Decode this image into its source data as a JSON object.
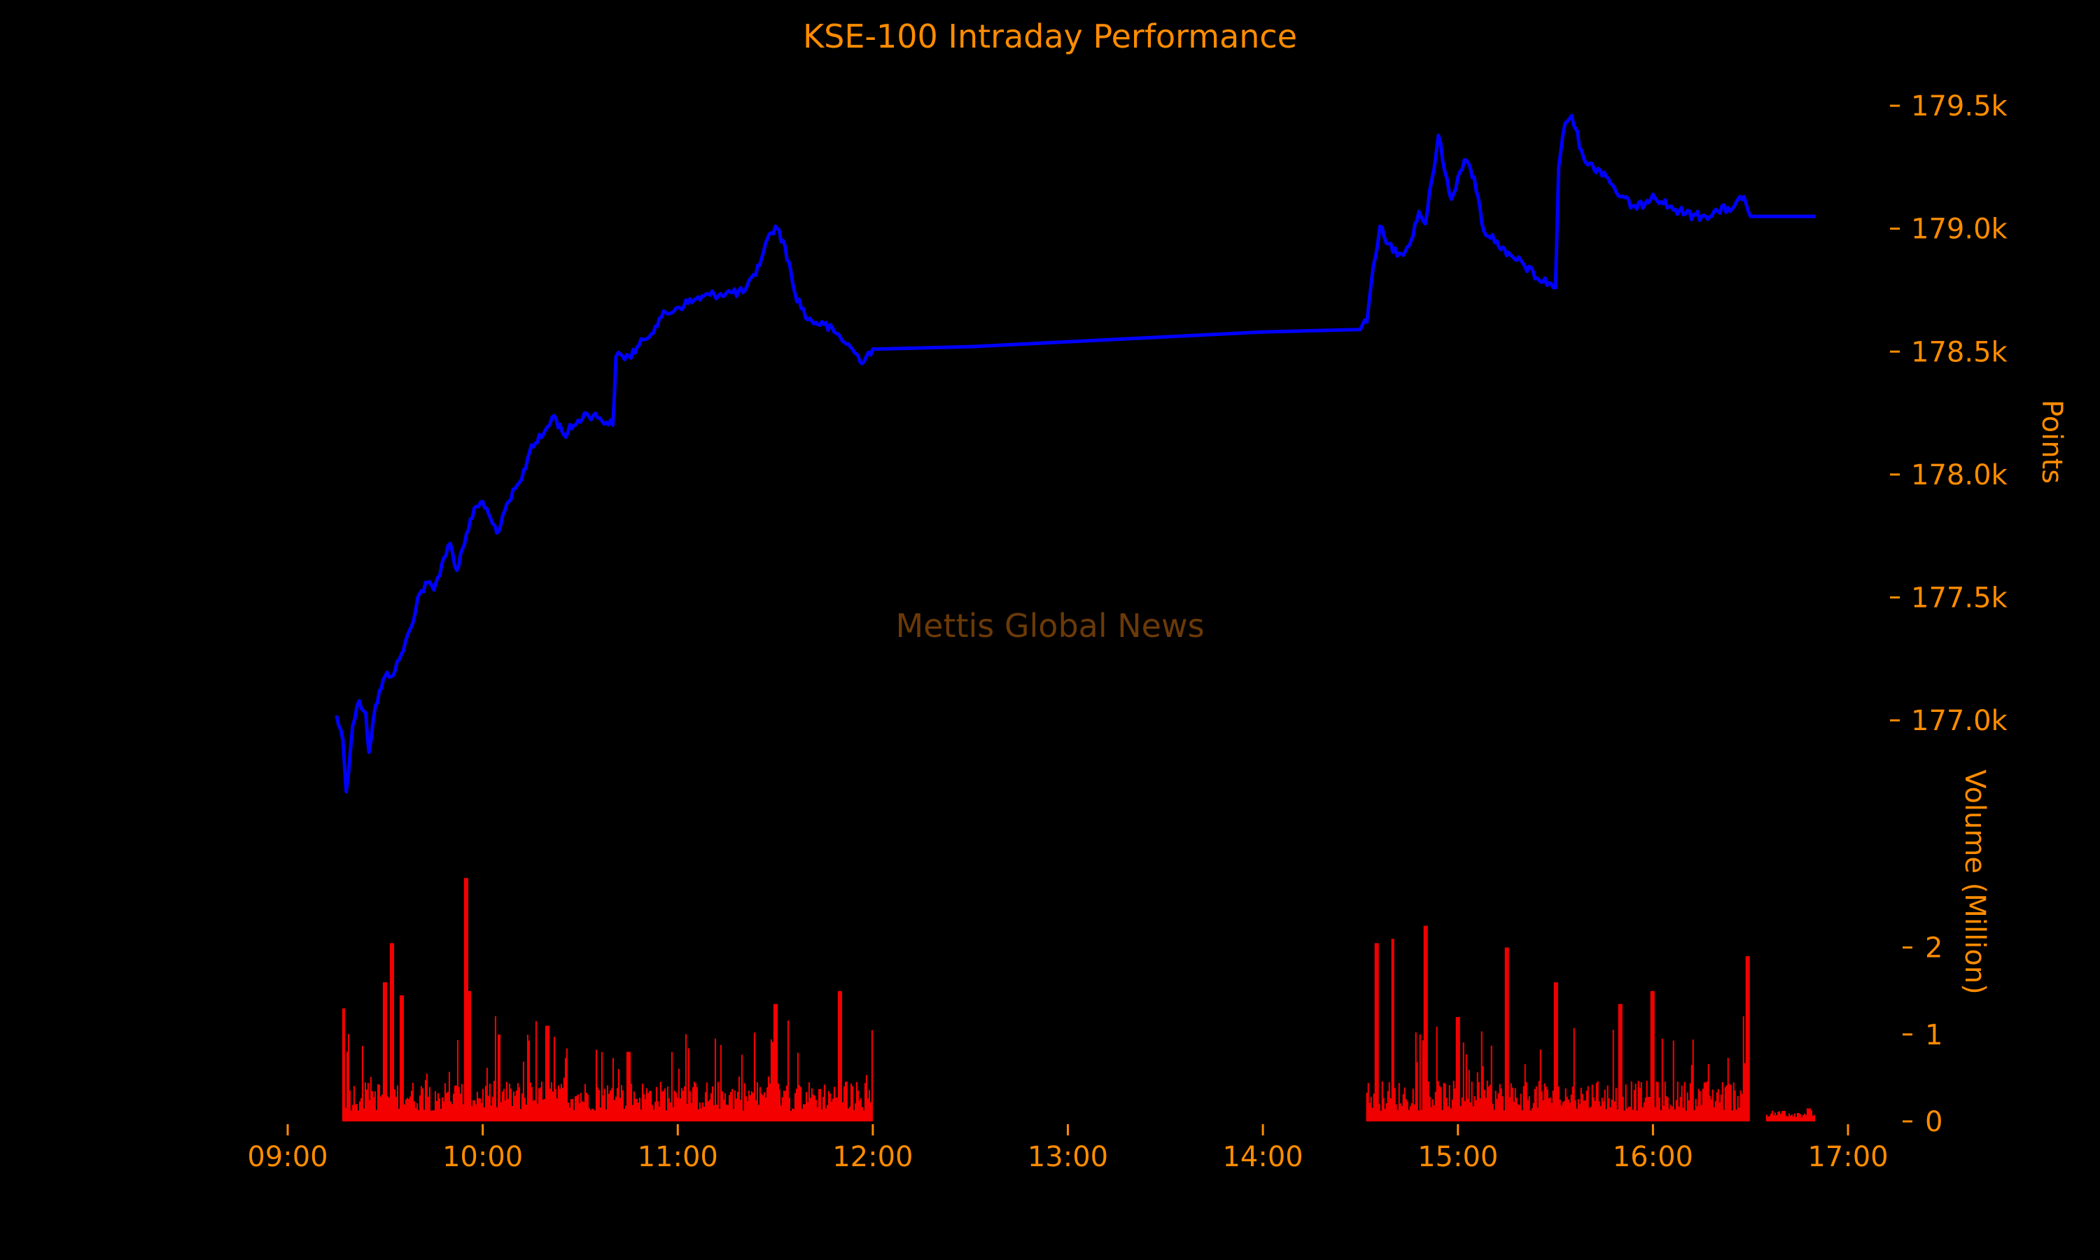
{
  "chart_data": {
    "type": "line",
    "title": "KSE-100 Intraday Performance",
    "watermark": "Mettis Global News",
    "x_ticks": [
      "09:00",
      "10:00",
      "11:00",
      "12:00",
      "13:00",
      "14:00",
      "15:00",
      "16:00",
      "17:00"
    ],
    "xlim": [
      "09:00",
      "17:00"
    ],
    "price_axis": {
      "label": "Points",
      "ticks": [
        177000,
        177500,
        178000,
        178500,
        179000,
        179500
      ],
      "tick_labels": [
        "177.0k",
        "177.5k",
        "178.0k",
        "178.5k",
        "179.0k",
        "179.5k"
      ],
      "ylim": [
        176650,
        179560
      ]
    },
    "volume_axis": {
      "label": "Volume (Million)",
      "ticks": [
        0,
        1,
        2
      ],
      "tick_labels": [
        "0",
        "1",
        "2"
      ],
      "ylim": [
        0,
        2.85
      ]
    },
    "series": [
      {
        "type": "line",
        "color": "#0000ff",
        "points": [
          [
            "09:15",
            177020
          ],
          [
            "09:17",
            176920
          ],
          [
            "09:18",
            176710
          ],
          [
            "09:20",
            176980
          ],
          [
            "09:22",
            177080
          ],
          [
            "09:24",
            177030
          ],
          [
            "09:25",
            176870
          ],
          [
            "09:27",
            177060
          ],
          [
            "09:30",
            177180
          ],
          [
            "09:33",
            177200
          ],
          [
            "09:35",
            177270
          ],
          [
            "09:38",
            177380
          ],
          [
            "09:40",
            177500
          ],
          [
            "09:43",
            177560
          ],
          [
            "09:45",
            177530
          ],
          [
            "09:48",
            177660
          ],
          [
            "09:50",
            177720
          ],
          [
            "09:52",
            177610
          ],
          [
            "09:55",
            177760
          ],
          [
            "09:58",
            177870
          ],
          [
            "10:00",
            177890
          ],
          [
            "10:03",
            177800
          ],
          [
            "10:05",
            177770
          ],
          [
            "10:08",
            177890
          ],
          [
            "10:12",
            177980
          ],
          [
            "10:15",
            178120
          ],
          [
            "10:18",
            178150
          ],
          [
            "10:22",
            178240
          ],
          [
            "10:25",
            178160
          ],
          [
            "10:28",
            178200
          ],
          [
            "10:32",
            178250
          ],
          [
            "10:36",
            178230
          ],
          [
            "10:40",
            178200
          ],
          [
            "10:41",
            178480
          ],
          [
            "10:45",
            178480
          ],
          [
            "10:50",
            178550
          ],
          [
            "10:55",
            178640
          ],
          [
            "11:00",
            178680
          ],
          [
            "11:05",
            178710
          ],
          [
            "11:10",
            178730
          ],
          [
            "11:15",
            178740
          ],
          [
            "11:20",
            178740
          ],
          [
            "11:24",
            178810
          ],
          [
            "11:27",
            178940
          ],
          [
            "11:30",
            179010
          ],
          [
            "11:33",
            178930
          ],
          [
            "11:36",
            178740
          ],
          [
            "11:40",
            178630
          ],
          [
            "11:45",
            178610
          ],
          [
            "11:50",
            178560
          ],
          [
            "11:55",
            178490
          ],
          [
            "11:56",
            178460
          ],
          [
            "12:00",
            178510
          ],
          [
            "12:30",
            178520
          ],
          [
            "13:00",
            178540
          ],
          [
            "13:30",
            178560
          ],
          [
            "14:00",
            178580
          ],
          [
            "14:30",
            178590
          ],
          [
            "14:32",
            178620
          ],
          [
            "14:34",
            178850
          ],
          [
            "14:36",
            179010
          ],
          [
            "14:38",
            178940
          ],
          [
            "14:42",
            178900
          ],
          [
            "14:45",
            178930
          ],
          [
            "14:48",
            179070
          ],
          [
            "14:50",
            179020
          ],
          [
            "14:52",
            179200
          ],
          [
            "14:54",
            179380
          ],
          [
            "14:56",
            179230
          ],
          [
            "14:58",
            179120
          ],
          [
            "15:00",
            179210
          ],
          [
            "15:02",
            179280
          ],
          [
            "15:05",
            179210
          ],
          [
            "15:08",
            178990
          ],
          [
            "15:12",
            178950
          ],
          [
            "15:15",
            178890
          ],
          [
            "15:20",
            178860
          ],
          [
            "15:25",
            178790
          ],
          [
            "15:28",
            178780
          ],
          [
            "15:30",
            178760
          ],
          [
            "15:31",
            179250
          ],
          [
            "15:33",
            179430
          ],
          [
            "15:35",
            179460
          ],
          [
            "15:38",
            179320
          ],
          [
            "15:40",
            179260
          ],
          [
            "15:45",
            179230
          ],
          [
            "15:50",
            179130
          ],
          [
            "15:55",
            179080
          ],
          [
            "16:00",
            179140
          ],
          [
            "16:05",
            179090
          ],
          [
            "16:10",
            179060
          ],
          [
            "16:15",
            179050
          ],
          [
            "16:20",
            179070
          ],
          [
            "16:25",
            179090
          ],
          [
            "16:28",
            179130
          ],
          [
            "16:30",
            179050
          ],
          [
            "16:50",
            179050
          ]
        ]
      },
      {
        "type": "bar",
        "color": "#ff0000",
        "unit": "Million",
        "sessions": [
          {
            "start": "09:17",
            "end": "12:00",
            "peaks": [
              [
                "09:17",
                1.3
              ],
              [
                "09:30",
                1.6
              ],
              [
                "09:32",
                2.05
              ],
              [
                "09:35",
                1.45
              ],
              [
                "09:55",
                2.8
              ],
              [
                "09:56",
                1.5
              ],
              [
                "10:05",
                1.0
              ],
              [
                "10:20",
                1.1
              ],
              [
                "10:45",
                0.8
              ],
              [
                "11:30",
                1.35
              ],
              [
                "11:50",
                1.5
              ],
              [
                "12:00",
                1.05
              ]
            ]
          },
          {
            "start": "14:32",
            "end": "16:30",
            "peaks": [
              [
                "14:35",
                2.05
              ],
              [
                "14:40",
                2.1
              ],
              [
                "14:50",
                2.25
              ],
              [
                "15:00",
                1.2
              ],
              [
                "15:15",
                2.0
              ],
              [
                "15:30",
                1.6
              ],
              [
                "15:50",
                1.35
              ],
              [
                "16:00",
                1.5
              ],
              [
                "16:29",
                1.9
              ]
            ]
          },
          {
            "start": "16:35",
            "end": "16:50",
            "peaks": [
              [
                "16:40",
                0.12
              ],
              [
                "16:48",
                0.15
              ]
            ]
          }
        ]
      }
    ]
  }
}
